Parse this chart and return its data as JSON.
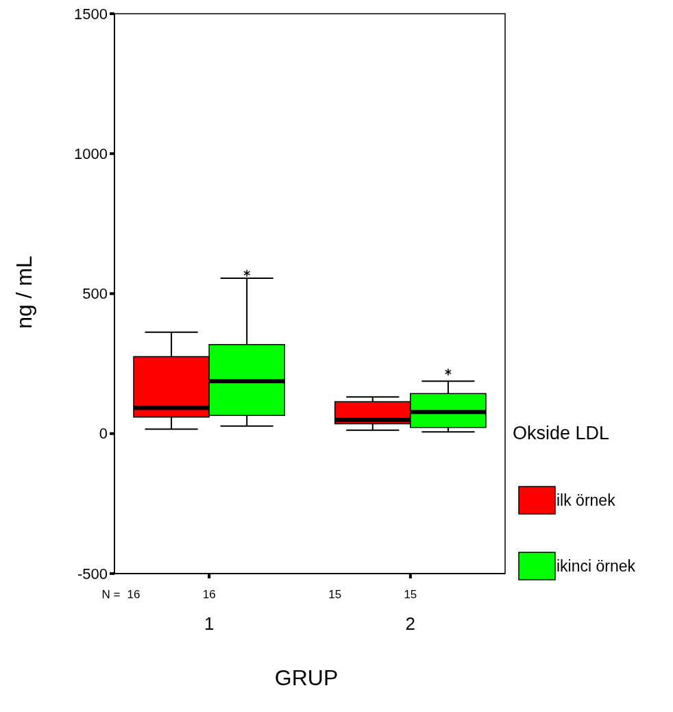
{
  "chart_data": {
    "type": "box",
    "categories": [
      "1",
      "2"
    ],
    "xlabel": "GRUP",
    "ylabel": "ng / mL",
    "legend_title": "Okside LDL",
    "legend": "right",
    "ylim": [
      -500,
      1500
    ],
    "yticks": [
      -500,
      0,
      500,
      1000,
      1500
    ],
    "annotations": [
      "N =",
      "16",
      "16",
      "15",
      "15"
    ],
    "series": [
      {
        "name": "ilk örnek",
        "color": "#ff0000",
        "boxes": [
          {
            "low": 16,
            "q1": 59,
            "median": 92,
            "q3": 275,
            "high": 362
          },
          {
            "low": 12,
            "q1": 35,
            "median": 49,
            "q3": 114,
            "high": 131
          }
        ]
      },
      {
        "name": "ikinci örnek",
        "color": "#00ff00",
        "boxes": [
          {
            "low": 27,
            "q1": 65,
            "median": 187,
            "q3": 318,
            "high": 555,
            "outliers": [
              573
            ]
          },
          {
            "low": 6,
            "q1": 22,
            "median": 77,
            "q3": 143,
            "high": 187,
            "outliers": [
              220
            ]
          }
        ]
      }
    ]
  }
}
